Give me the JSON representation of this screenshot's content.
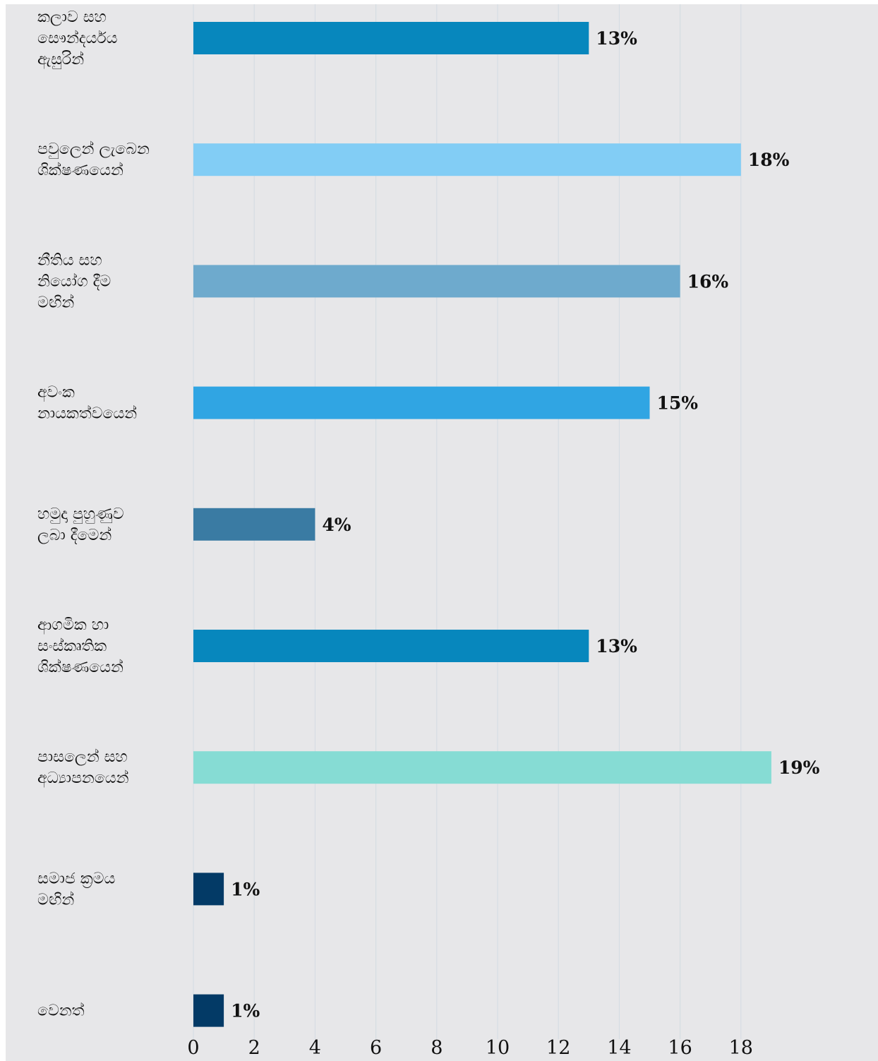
{
  "chart_data": {
    "type": "bar",
    "orientation": "horizontal",
    "categories": [
      [
        "කලාව සහ",
        "සෞන්දර්යය",
        "ඇසුරින්"
      ],
      [
        "පවුලෙන් ලැබෙන",
        "ශික්ෂණයෙන්"
      ],
      [
        "නීතිය සහ",
        "නියෝග දීම",
        "මඟින්"
      ],
      [
        "අවංක",
        "නායකත්වයෙන්"
      ],
      [
        "හමුදා පුහුණුව",
        "ලබා දීමෙන්"
      ],
      [
        "ආගමික හා",
        "සංස්කෘතික",
        "ශික්ෂණයෙන්"
      ],
      [
        "පාසලෙන් සහ",
        "අධ්‍යාපනයෙන්"
      ],
      [
        "සමාජ ක්‍රමය",
        "මඟින්"
      ],
      [
        "වෙනත්"
      ]
    ],
    "values": [
      13,
      18,
      16,
      15,
      4,
      13,
      19,
      1,
      1
    ],
    "value_labels": [
      "13%",
      "18%",
      "16%",
      "15%",
      "4%",
      "13%",
      "19%",
      "1%",
      "1%"
    ],
    "colors": [
      "#0787bd",
      "#82cdf5",
      "#6eaacd",
      "#30a5e3",
      "#3a7ba3",
      "#0787bd",
      "#86dcd4",
      "#033a66",
      "#033a66"
    ],
    "x_ticks": [
      "0",
      "2",
      "4",
      "6",
      "8",
      "10",
      "12",
      "14",
      "16",
      "18"
    ],
    "xlim": [
      0,
      18
    ],
    "grid": true,
    "legend": "none",
    "title": "",
    "xlabel": "",
    "ylabel": ""
  }
}
